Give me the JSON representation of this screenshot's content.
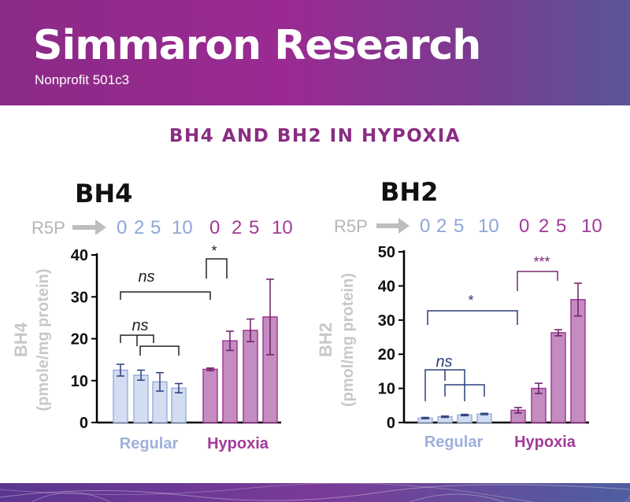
{
  "header": {
    "title": "Simmaron Research",
    "subtitle": "Nonprofit 501c3"
  },
  "slide_title": "BH4 AND BH2 IN HYPOXIA",
  "colors": {
    "regular": "#8ea6d8",
    "hypoxia": "#a13a98",
    "arrow": "#bdbdbd",
    "header": "#8b2a86"
  },
  "chart_data": [
    {
      "type": "bar",
      "title": "BH4",
      "ylabel": "BH4",
      "ylabel_sub": "(pmole/mg protein)",
      "ylim": [
        0,
        40
      ],
      "yticks": [
        0,
        10,
        20,
        30,
        40
      ],
      "r5p_label": "R5P",
      "categories": [
        "0",
        "2",
        "5",
        "10",
        "0",
        "2",
        "5",
        "10"
      ],
      "groups": [
        {
          "name": "Regular",
          "categories": [
            "0",
            "2",
            "5",
            "10"
          ],
          "values": [
            12.5,
            11.3,
            9.7,
            8.2
          ],
          "errors": [
            1.4,
            1.2,
            2.2,
            1.1
          ]
        },
        {
          "name": "Hypoxia",
          "categories": [
            "0",
            "2",
            "5",
            "10"
          ],
          "values": [
            12.7,
            19.5,
            22.0,
            25.2
          ],
          "errors": [
            0.3,
            2.3,
            2.7,
            9.0
          ]
        }
      ],
      "annotations": [
        {
          "label": "ns",
          "type": "bracket"
        },
        {
          "label": "ns",
          "type": "bracket"
        },
        {
          "label": "*",
          "type": "bracket"
        }
      ]
    },
    {
      "type": "bar",
      "title": "BH2",
      "ylabel": "BH2",
      "ylabel_sub": "(pmol/mg protein)",
      "ylim": [
        0,
        50
      ],
      "yticks": [
        0,
        10,
        20,
        30,
        40,
        50
      ],
      "r5p_label": "R5P",
      "categories": [
        "0",
        "2",
        "5",
        "10",
        "0",
        "2",
        "5",
        "10"
      ],
      "groups": [
        {
          "name": "Regular",
          "categories": [
            "0",
            "2",
            "5",
            "10"
          ],
          "values": [
            1.3,
            1.7,
            2.2,
            2.5
          ],
          "errors": [
            0.2,
            0.2,
            0.2,
            0.2
          ]
        },
        {
          "name": "Hypoxia",
          "categories": [
            "0",
            "2",
            "5",
            "10"
          ],
          "values": [
            3.6,
            10.0,
            26.3,
            36.0
          ],
          "errors": [
            0.8,
            1.5,
            0.9,
            4.8
          ]
        }
      ],
      "annotations": [
        {
          "label": "*",
          "type": "bracket"
        },
        {
          "label": "ns",
          "type": "bracket"
        },
        {
          "label": "***",
          "type": "bracket"
        }
      ]
    }
  ]
}
